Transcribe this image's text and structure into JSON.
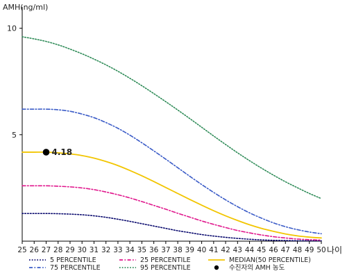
{
  "chart_data": {
    "type": "line",
    "ylabel": "AMH(ng/ml)",
    "xlabel": "나이",
    "xlim": [
      25,
      50
    ],
    "ylim": [
      0,
      11
    ],
    "yticks": [
      5,
      10
    ],
    "x": [
      25,
      26,
      27,
      28,
      29,
      30,
      31,
      32,
      33,
      34,
      35,
      36,
      37,
      38,
      39,
      40,
      41,
      42,
      43,
      44,
      45,
      46,
      47,
      48,
      49,
      50
    ],
    "series": [
      {
        "name": "5 PERCENTILE",
        "color": "#0a0a6e",
        "dash": "dotted",
        "values": [
          1.3,
          1.3,
          1.3,
          1.29,
          1.27,
          1.24,
          1.19,
          1.12,
          1.03,
          0.93,
          0.82,
          0.71,
          0.6,
          0.49,
          0.4,
          0.31,
          0.24,
          0.18,
          0.13,
          0.09,
          0.06,
          0.04,
          0.03,
          0.02,
          0.02,
          0.02
        ]
      },
      {
        "name": "25 PERCENTILE",
        "color": "#e0168c",
        "dash": "dashdot",
        "values": [
          2.6,
          2.6,
          2.6,
          2.58,
          2.55,
          2.5,
          2.42,
          2.31,
          2.18,
          2.03,
          1.86,
          1.68,
          1.5,
          1.31,
          1.13,
          0.95,
          0.79,
          0.64,
          0.5,
          0.39,
          0.29,
          0.21,
          0.15,
          0.1,
          0.07,
          0.05
        ]
      },
      {
        "name": "MEDIAN(50 PERCENTILE)",
        "color": "#f2c500",
        "dash": "solid",
        "values": [
          4.18,
          4.18,
          4.18,
          4.15,
          4.1,
          4.02,
          3.9,
          3.74,
          3.55,
          3.32,
          3.07,
          2.8,
          2.52,
          2.24,
          1.96,
          1.69,
          1.43,
          1.19,
          0.97,
          0.77,
          0.6,
          0.46,
          0.34,
          0.25,
          0.19,
          0.15
        ]
      },
      {
        "name": "75 PERCENTILE",
        "color": "#3a5bc7",
        "dash": "dashdot",
        "values": [
          6.2,
          6.2,
          6.2,
          6.17,
          6.1,
          5.97,
          5.8,
          5.57,
          5.3,
          4.98,
          4.62,
          4.24,
          3.85,
          3.45,
          3.05,
          2.66,
          2.29,
          1.94,
          1.62,
          1.33,
          1.08,
          0.86,
          0.68,
          0.54,
          0.43,
          0.35
        ]
      },
      {
        "name": "95 PERCENTILE",
        "color": "#2e8b57",
        "dash": "dotted",
        "values": [
          9.6,
          9.5,
          9.38,
          9.22,
          9.02,
          8.8,
          8.55,
          8.28,
          7.98,
          7.65,
          7.3,
          6.93,
          6.55,
          6.16,
          5.76,
          5.35,
          4.94,
          4.54,
          4.15,
          3.78,
          3.43,
          3.1,
          2.79,
          2.51,
          2.24,
          2.0
        ]
      }
    ],
    "marker": {
      "name": "수진자의 AMH 농도",
      "x": 27,
      "y": 4.18,
      "label": "4.18",
      "color": "#000000"
    },
    "legend": {
      "position": "bottom",
      "columns": 3
    },
    "grid": false
  }
}
